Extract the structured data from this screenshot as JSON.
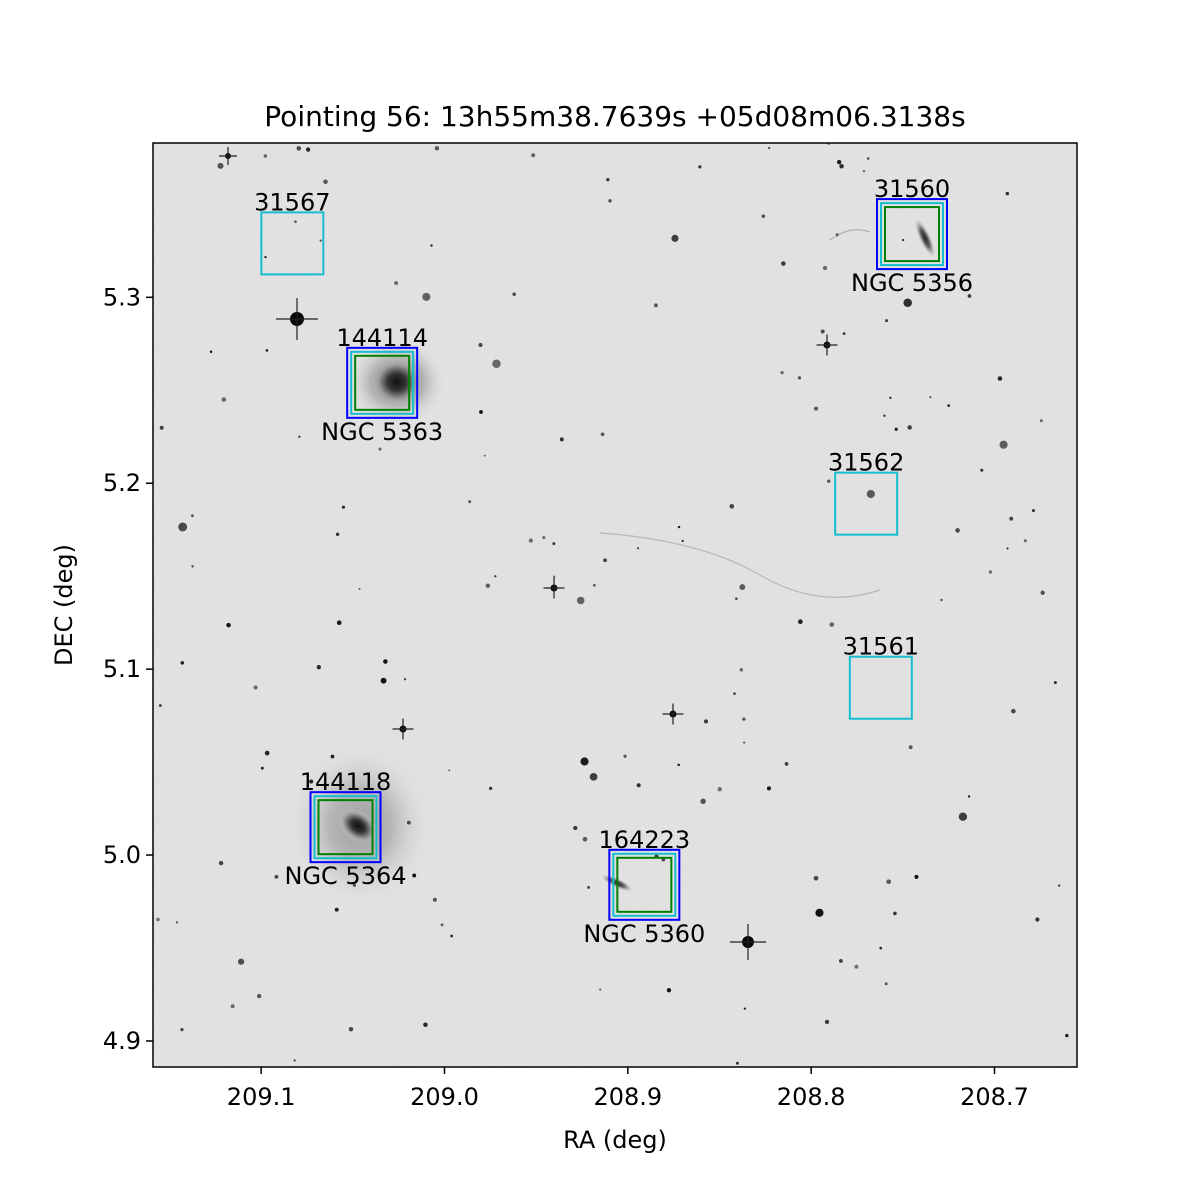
{
  "chart_data": {
    "type": "scatter",
    "title": "Pointing 56: 13h55m38.7639s +05d08m06.3138s",
    "xlabel": "RA (deg)",
    "ylabel": "DEC (deg)",
    "xlim": [
      209.159,
      208.655
    ],
    "ylim": [
      4.886,
      5.383
    ],
    "x_ticks": [
      209.1,
      209.0,
      208.9,
      208.8,
      208.7
    ],
    "y_ticks": [
      4.9,
      5.0,
      5.1,
      5.2,
      5.3
    ],
    "x_tick_labels": [
      "209.1",
      "209.0",
      "208.9",
      "208.8",
      "208.7"
    ],
    "y_tick_labels": [
      "4.9",
      "5.0",
      "5.1",
      "5.2",
      "5.3"
    ],
    "grid": false,
    "background": "grayscale survey image",
    "colors": {
      "cyan_box": "#17becf",
      "blue_box": "#0000ff",
      "green_box": "#008000"
    },
    "sources": [
      {
        "id": "31567",
        "ra": 209.083,
        "dec": 5.329,
        "name": "",
        "boxes": [
          "cyan"
        ]
      },
      {
        "id": "31560",
        "ra": 208.745,
        "dec": 5.334,
        "name": "NGC 5356",
        "boxes": [
          "blue",
          "cyan",
          "green"
        ]
      },
      {
        "id": "144114",
        "ra": 209.034,
        "dec": 5.254,
        "name": "NGC 5363",
        "boxes": [
          "blue",
          "cyan",
          "green"
        ]
      },
      {
        "id": "31562",
        "ra": 208.77,
        "dec": 5.189,
        "name": "",
        "boxes": [
          "cyan"
        ]
      },
      {
        "id": "31561",
        "ra": 208.762,
        "dec": 5.09,
        "name": "",
        "boxes": [
          "cyan"
        ]
      },
      {
        "id": "144118",
        "ra": 209.054,
        "dec": 5.015,
        "name": "NGC 5364",
        "boxes": [
          "blue",
          "cyan",
          "green"
        ]
      },
      {
        "id": "164223",
        "ra": 208.891,
        "dec": 4.984,
        "name": "NGC 5360",
        "boxes": [
          "blue",
          "cyan",
          "green"
        ]
      }
    ]
  }
}
